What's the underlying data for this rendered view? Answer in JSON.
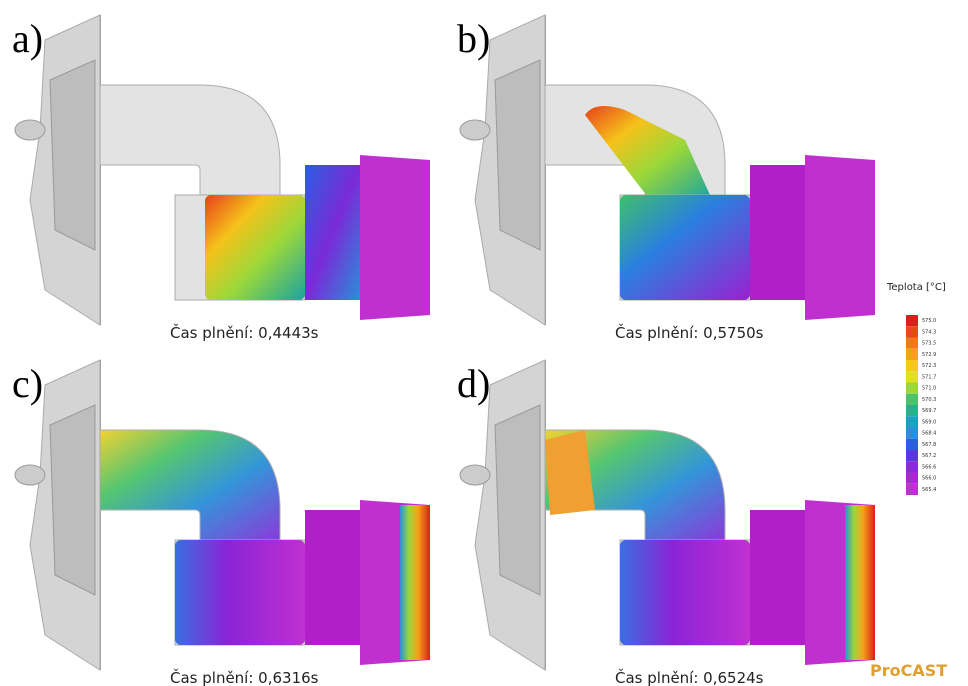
{
  "panels": [
    {
      "label": "a)",
      "caption": "Čas plnění: 0,4443s"
    },
    {
      "label": "b)",
      "caption": "Čas plnění: 0,5750s"
    },
    {
      "label": "c)",
      "caption": "Čas plnění: 0,6316s"
    },
    {
      "label": "d)",
      "caption": "Čas plnění: 0,6524s"
    }
  ],
  "legend": {
    "title": "Teplota [°C]",
    "labels": [
      "575.0",
      "574.3",
      "573.5",
      "572.9",
      "572.3",
      "571.7",
      "571.0",
      "570.3",
      "569.7",
      "569.0",
      "568.4",
      "567.8",
      "567.2",
      "566.6",
      "566.0",
      "565.4"
    ]
  },
  "watermark": "ProCAST"
}
